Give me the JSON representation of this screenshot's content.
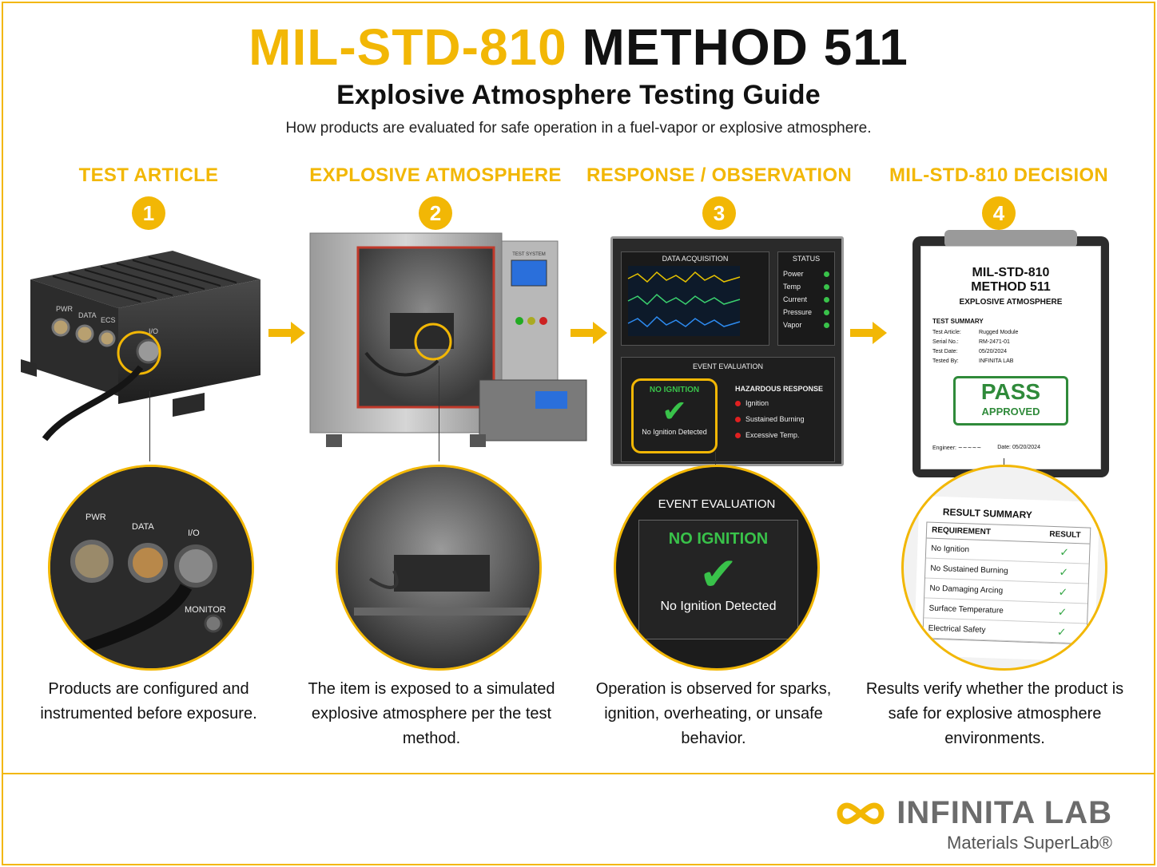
{
  "header": {
    "title_accent": "MIL-STD-810",
    "title_rest": "METHOD 511",
    "subtitle": "Explosive Atmosphere Testing Guide",
    "tagline": "How products are evaluated for safe operation in a fuel-vapor or explosive atmosphere."
  },
  "steps": [
    {
      "number": "1",
      "title": "TEST ARTICLE",
      "description": "Products are configured and instrumented before exposure."
    },
    {
      "number": "2",
      "title": "EXPLOSIVE ATMOSPHERE",
      "description": "The item is exposed to a simulated explosive atmosphere per the test method."
    },
    {
      "number": "3",
      "title": "RESPONSE / OBSERVATION",
      "description": "Operation is observed for sparks, ignition, overheating, or unsafe behavior."
    },
    {
      "number": "4",
      "title": "MIL-STD-810 DECISION",
      "description": "Results verify whether the product is safe for explosive atmosphere environments."
    }
  ],
  "device": {
    "ports": [
      "PWR",
      "DATA",
      "ECS",
      "I/O"
    ],
    "zoom_ports": [
      "PWR",
      "DATA",
      "I/O",
      "MONITOR"
    ]
  },
  "chamber": {
    "screen_label": "TEST SYSTEM"
  },
  "monitor": {
    "data_acq_label": "DATA ACQUISITION",
    "status_label": "STATUS",
    "status_items": [
      "Power",
      "Temp",
      "Current",
      "Pressure",
      "Vapor"
    ],
    "event_label": "EVENT EVALUATION",
    "no_ignition": "NO IGNITION",
    "no_ignition_detected": "No Ignition Detected",
    "hazard_label": "HAZARDOUS RESPONSE",
    "hazard_items": [
      "Ignition",
      "Sustained Burning",
      "Excessive Temp."
    ],
    "status_color": "#39c24a",
    "hazard_color": "#e02020"
  },
  "report": {
    "title1": "MIL-STD-810",
    "title2": "METHOD 511",
    "title3": "EXPLOSIVE ATMOSPHERE",
    "summary_label": "TEST SUMMARY",
    "fields": [
      {
        "k": "Test Article:",
        "v": "Rugged Module"
      },
      {
        "k": "Serial No.:",
        "v": "RM-2471-01"
      },
      {
        "k": "Test Date:",
        "v": "05/20/2024"
      },
      {
        "k": "Tested By:",
        "v": "INFINITA LAB"
      }
    ],
    "stamp_main": "PASS",
    "stamp_sub": "APPROVED",
    "engineer_label": "Engineer:",
    "date_label": "Date:",
    "date_value": "05/20/2024"
  },
  "result_summary": {
    "title": "RESULT SUMMARY",
    "col_requirement": "REQUIREMENT",
    "col_result": "RESULT",
    "rows": [
      "No Ignition",
      "No Sustained Burning",
      "No Damaging Arcing",
      "Surface Temperature",
      "Electrical Safety"
    ],
    "check": "✓"
  },
  "brand": {
    "name": "INFINITA LAB",
    "subtitle": "Materials SuperLab®",
    "accent": "#f2b705"
  }
}
